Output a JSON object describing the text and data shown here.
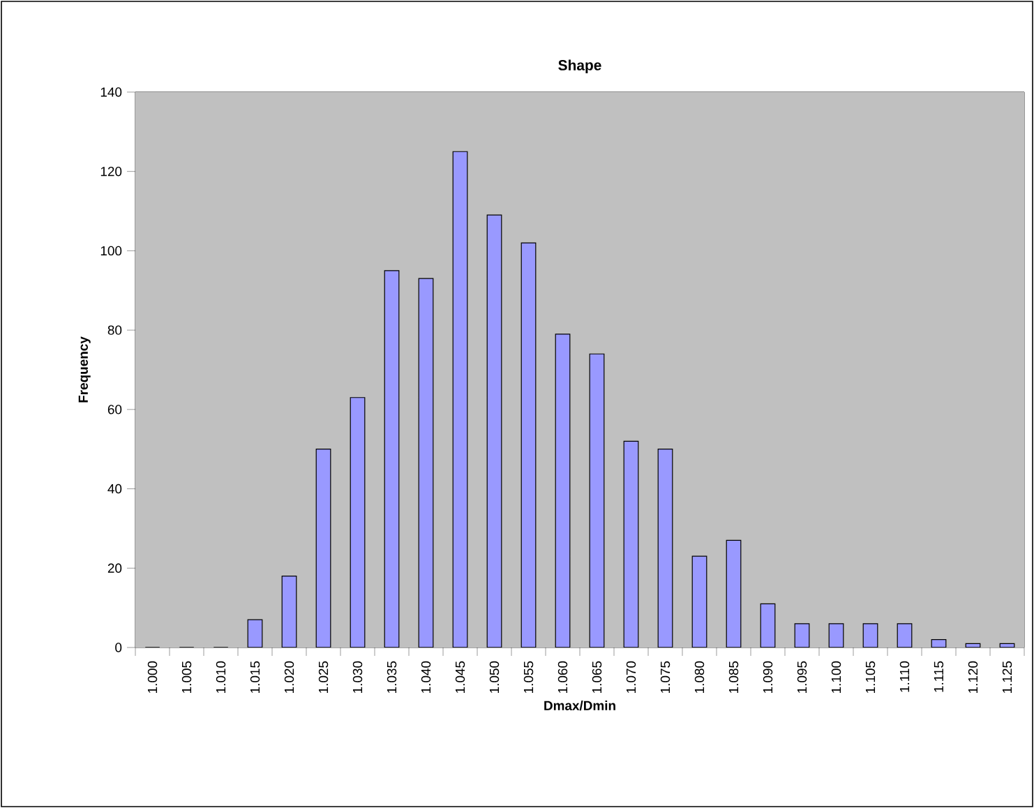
{
  "chart_data": {
    "type": "bar",
    "title": "Shape",
    "xlabel": "Dmax/Dmin",
    "ylabel": "Frequency",
    "categories": [
      "1.000",
      "1.005",
      "1.010",
      "1.015",
      "1.020",
      "1.025",
      "1.030",
      "1.035",
      "1.040",
      "1.045",
      "1.050",
      "1.055",
      "1.060",
      "1.065",
      "1.070",
      "1.075",
      "1.080",
      "1.085",
      "1.090",
      "1.095",
      "1.100",
      "1.105",
      "1.110",
      "1.115",
      "1.120",
      "1.125"
    ],
    "values": [
      0,
      0,
      0,
      7,
      18,
      50,
      63,
      95,
      93,
      125,
      109,
      102,
      79,
      74,
      52,
      50,
      23,
      27,
      11,
      6,
      6,
      6,
      6,
      2,
      1,
      1
    ],
    "color": "#9999ff",
    "ylim": [
      0,
      140
    ],
    "yticks": [
      0,
      20,
      40,
      60,
      80,
      100,
      120,
      140
    ]
  }
}
